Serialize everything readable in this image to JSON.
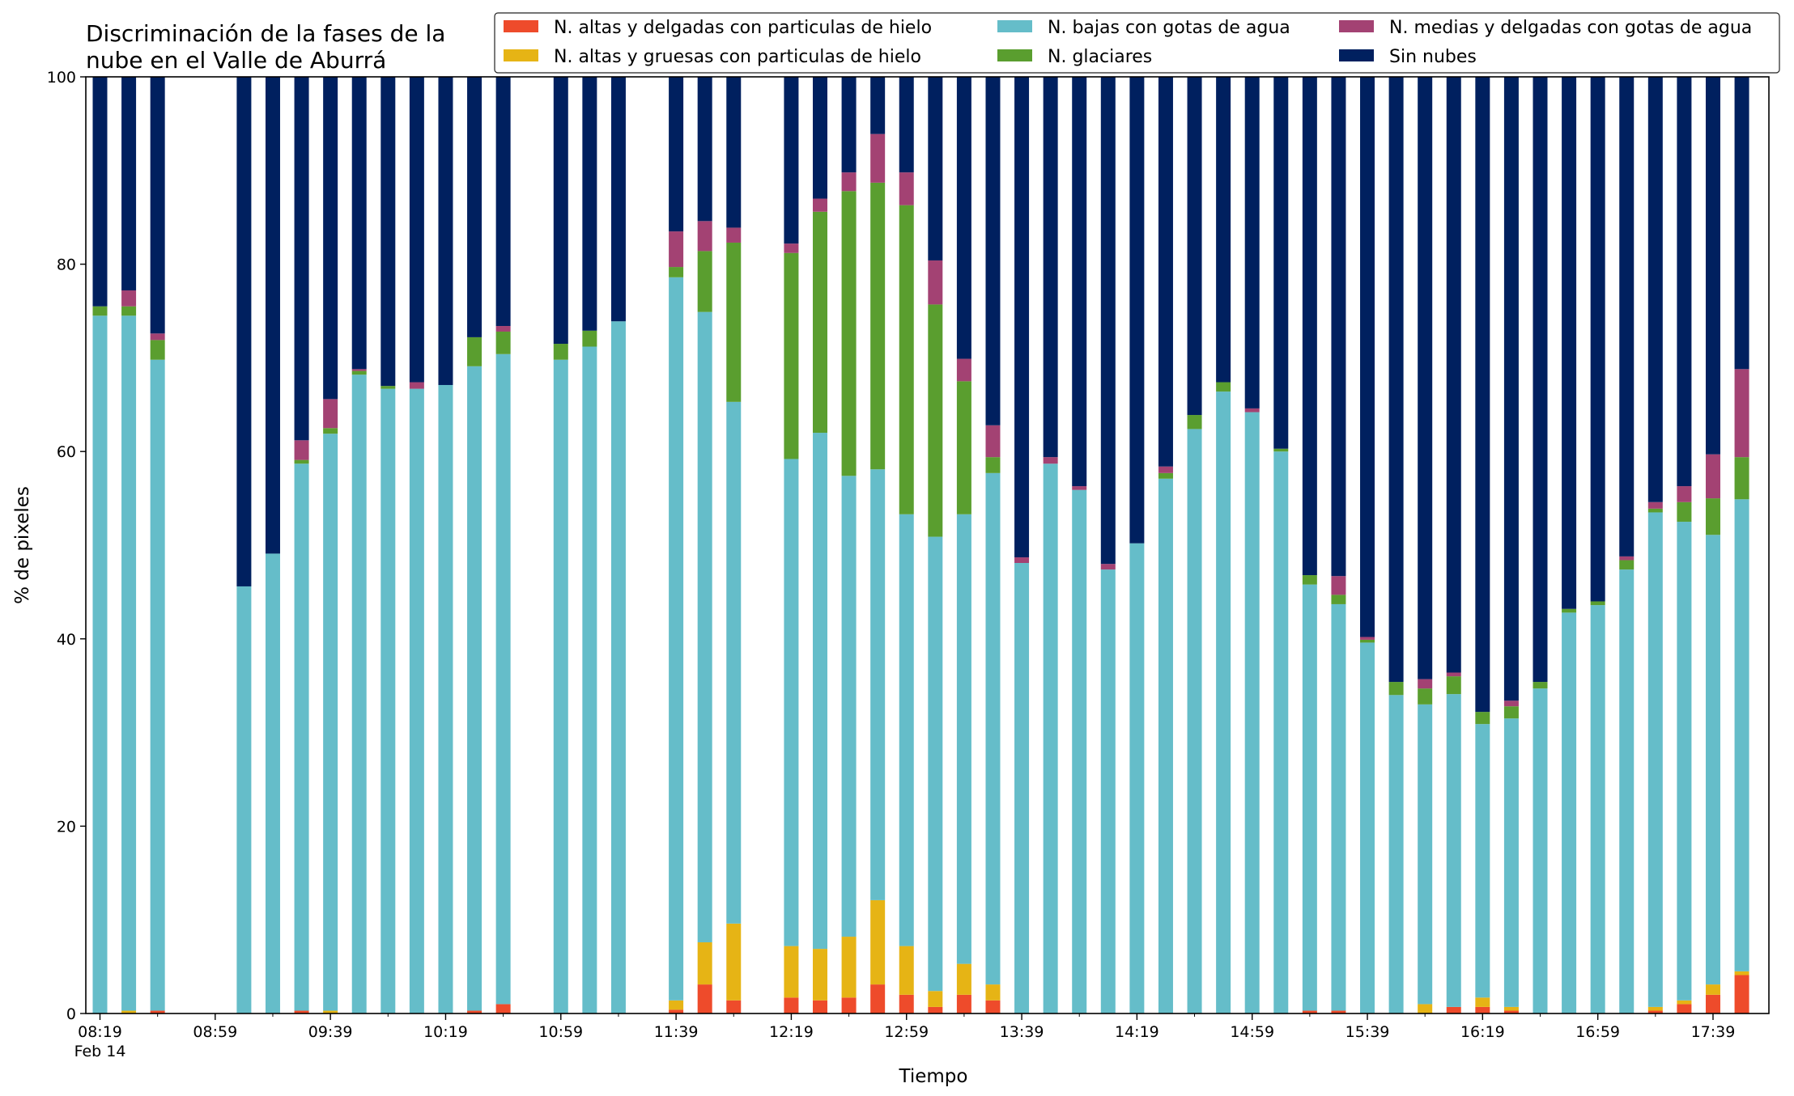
{
  "chart_data": {
    "type": "bar",
    "stacked": true,
    "title_lines": [
      "Discriminación de la fases de la",
      "nube en el Valle de Aburrá"
    ],
    "xlabel": "Tiempo",
    "ylabel": "% de pixeles",
    "ylim": [
      0,
      100
    ],
    "y_ticks": [
      0,
      20,
      40,
      60,
      80,
      100
    ],
    "grid": false,
    "legend_position": "top-right",
    "x_tick_labels": [
      {
        "slot": 0,
        "label": "08:19",
        "sub": "Feb 14"
      },
      {
        "slot": 4,
        "label": "08:59"
      },
      {
        "slot": 8,
        "label": "09:39"
      },
      {
        "slot": 12,
        "label": "10:19"
      },
      {
        "slot": 16,
        "label": "10:59"
      },
      {
        "slot": 20,
        "label": "11:39"
      },
      {
        "slot": 24,
        "label": "12:19"
      },
      {
        "slot": 28,
        "label": "12:59"
      },
      {
        "slot": 32,
        "label": "13:39"
      },
      {
        "slot": 36,
        "label": "14:19"
      },
      {
        "slot": 40,
        "label": "14:59"
      },
      {
        "slot": 44,
        "label": "15:39"
      },
      {
        "slot": 48,
        "label": "16:19"
      },
      {
        "slot": 52,
        "label": "16:59"
      },
      {
        "slot": 56,
        "label": "17:39"
      }
    ],
    "n_slots": 58,
    "series": [
      {
        "name": "N. altas y delgadas con particulas de hielo",
        "color": "#ee4b2b"
      },
      {
        "name": "N. altas y gruesas con particulas de hielo",
        "color": "#e6b415"
      },
      {
        "name": "N. bajas con gotas de agua",
        "color": "#65bdc9"
      },
      {
        "name": "N. glaciares",
        "color": "#5a9e2f"
      },
      {
        "name": "N. medias y delgadas con gotas de agua",
        "color": "#a34273"
      },
      {
        "name": "Sin nubes",
        "color": "#00205f"
      }
    ],
    "bars": [
      {
        "slot": 0,
        "values": [
          0,
          0,
          74.5,
          1.0,
          0,
          24.5
        ]
      },
      {
        "slot": 1,
        "values": [
          0,
          0.3,
          74.2,
          1.0,
          1.7,
          22.8
        ]
      },
      {
        "slot": 2,
        "values": [
          0.3,
          0,
          69.5,
          2.1,
          0.7,
          27.4
        ]
      },
      {
        "slot": 5,
        "values": [
          0,
          0,
          45.6,
          0,
          0,
          54.4
        ]
      },
      {
        "slot": 6,
        "values": [
          0,
          0,
          49.1,
          0,
          0,
          50.9
        ]
      },
      {
        "slot": 7,
        "values": [
          0.3,
          0,
          58.4,
          0.4,
          2.1,
          38.8
        ]
      },
      {
        "slot": 8,
        "values": [
          0,
          0.3,
          61.6,
          0.6,
          3.1,
          34.4
        ]
      },
      {
        "slot": 9,
        "values": [
          0,
          0,
          68.2,
          0.4,
          0.2,
          31.2
        ]
      },
      {
        "slot": 10,
        "values": [
          0,
          0,
          66.7,
          0.3,
          0,
          33.0
        ]
      },
      {
        "slot": 11,
        "values": [
          0,
          0,
          66.7,
          0,
          0.7,
          32.6
        ]
      },
      {
        "slot": 12,
        "values": [
          0,
          0,
          67.1,
          0,
          0,
          32.9
        ]
      },
      {
        "slot": 13,
        "values": [
          0.3,
          0,
          68.8,
          3.1,
          0,
          27.8
        ]
      },
      {
        "slot": 14,
        "values": [
          1.0,
          0,
          69.4,
          2.4,
          0.6,
          26.6
        ]
      },
      {
        "slot": 16,
        "values": [
          0,
          0,
          69.8,
          1.7,
          0,
          28.5
        ]
      },
      {
        "slot": 17,
        "values": [
          0,
          0,
          71.2,
          1.7,
          0,
          27.1
        ]
      },
      {
        "slot": 18,
        "values": [
          0,
          0,
          73.9,
          0,
          0,
          26.1
        ]
      },
      {
        "slot": 20,
        "values": [
          0.4,
          1.0,
          77.2,
          1.1,
          3.8,
          16.5
        ]
      },
      {
        "slot": 21,
        "values": [
          3.1,
          4.5,
          67.3,
          6.5,
          3.2,
          15.4
        ]
      },
      {
        "slot": 22,
        "values": [
          1.4,
          8.2,
          55.7,
          17.0,
          1.6,
          16.1
        ]
      },
      {
        "slot": 24,
        "values": [
          1.7,
          5.5,
          52.0,
          22.0,
          1.0,
          17.8
        ]
      },
      {
        "slot": 25,
        "values": [
          1.4,
          5.5,
          55.1,
          23.6,
          1.4,
          13.0
        ]
      },
      {
        "slot": 26,
        "values": [
          1.7,
          6.5,
          49.2,
          30.4,
          2.0,
          10.2
        ]
      },
      {
        "slot": 27,
        "values": [
          3.1,
          9.0,
          46.0,
          30.6,
          5.2,
          6.1
        ]
      },
      {
        "slot": 28,
        "values": [
          2.0,
          5.2,
          46.1,
          33.0,
          3.5,
          10.2
        ]
      },
      {
        "slot": 29,
        "values": [
          0.7,
          1.7,
          48.5,
          24.8,
          4.7,
          19.6
        ]
      },
      {
        "slot": 30,
        "values": [
          2.0,
          3.3,
          48.0,
          14.2,
          2.4,
          30.1
        ]
      },
      {
        "slot": 31,
        "values": [
          1.4,
          1.7,
          54.6,
          1.7,
          3.4,
          37.2
        ]
      },
      {
        "slot": 32,
        "values": [
          0,
          0,
          48.1,
          0,
          0.6,
          51.3
        ]
      },
      {
        "slot": 33,
        "values": [
          0,
          0,
          58.7,
          0,
          0.7,
          40.6
        ]
      },
      {
        "slot": 34,
        "values": [
          0,
          0,
          55.9,
          0,
          0.4,
          43.7
        ]
      },
      {
        "slot": 35,
        "values": [
          0,
          0,
          47.4,
          0,
          0.6,
          52.0
        ]
      },
      {
        "slot": 36,
        "values": [
          0,
          0,
          50.2,
          0,
          0,
          49.8
        ]
      },
      {
        "slot": 37,
        "values": [
          0,
          0,
          57.1,
          0.6,
          0.7,
          41.6
        ]
      },
      {
        "slot": 38,
        "values": [
          0,
          0,
          62.4,
          1.5,
          0,
          36.1
        ]
      },
      {
        "slot": 39,
        "values": [
          0,
          0,
          66.4,
          1.0,
          0,
          32.6
        ]
      },
      {
        "slot": 40,
        "values": [
          0,
          0,
          64.2,
          0,
          0.4,
          35.4
        ]
      },
      {
        "slot": 41,
        "values": [
          0,
          0,
          60.0,
          0.3,
          0,
          39.7
        ]
      },
      {
        "slot": 42,
        "values": [
          0.3,
          0,
          45.5,
          1.0,
          0,
          53.2
        ]
      },
      {
        "slot": 43,
        "values": [
          0.3,
          0,
          43.4,
          1.0,
          2.0,
          53.3
        ]
      },
      {
        "slot": 44,
        "values": [
          0,
          0,
          39.6,
          0.3,
          0.3,
          59.8
        ]
      },
      {
        "slot": 45,
        "values": [
          0,
          0,
          34.0,
          1.4,
          0,
          64.6
        ]
      },
      {
        "slot": 46,
        "values": [
          0,
          1.0,
          32.0,
          1.7,
          1.0,
          64.3
        ]
      },
      {
        "slot": 47,
        "values": [
          0.7,
          0,
          33.4,
          1.9,
          0.4,
          63.6
        ]
      },
      {
        "slot": 48,
        "values": [
          0.7,
          1.0,
          29.2,
          1.3,
          0,
          67.8
        ]
      },
      {
        "slot": 49,
        "values": [
          0.3,
          0.4,
          30.8,
          1.3,
          0.6,
          66.6
        ]
      },
      {
        "slot": 50,
        "values": [
          0,
          0,
          34.7,
          0.7,
          0,
          64.6
        ]
      },
      {
        "slot": 51,
        "values": [
          0,
          0,
          42.8,
          0.4,
          0,
          56.8
        ]
      },
      {
        "slot": 52,
        "values": [
          0,
          0,
          43.6,
          0.4,
          0,
          56.0
        ]
      },
      {
        "slot": 53,
        "values": [
          0,
          0,
          47.4,
          1.0,
          0.4,
          51.2
        ]
      },
      {
        "slot": 54,
        "values": [
          0.3,
          0.4,
          52.8,
          0.4,
          0.7,
          45.4
        ]
      },
      {
        "slot": 55,
        "values": [
          1.0,
          0.4,
          51.1,
          2.1,
          1.7,
          43.7
        ]
      },
      {
        "slot": 56,
        "values": [
          2.0,
          1.1,
          48.0,
          3.9,
          4.7,
          40.3
        ]
      },
      {
        "slot": 57,
        "values": [
          4.1,
          0.4,
          50.4,
          4.5,
          9.4,
          31.2
        ]
      }
    ]
  }
}
